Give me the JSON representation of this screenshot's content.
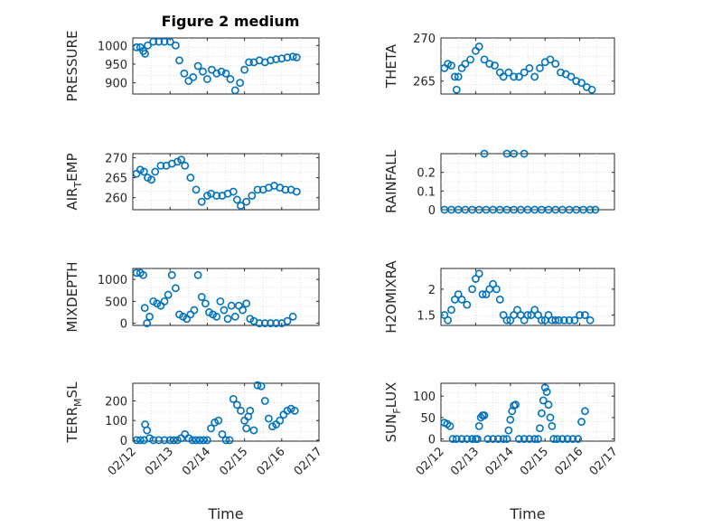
{
  "figure_title": "Figure 2 medium",
  "colors": {
    "marker": "#0072BD",
    "axis": "#262626",
    "grid": "#c8c8c8"
  },
  "chart_data": [
    {
      "id": "pressure",
      "type": "scatter",
      "title": "Figure 2 medium",
      "ylabel": "PRESSURE",
      "ylabel_sub": "",
      "xlabel": "",
      "ylim": [
        870,
        1020
      ],
      "yticks": [
        900,
        950,
        1000
      ],
      "xlim": [
        0,
        5
      ],
      "xticks": [
        0,
        1,
        2,
        3,
        4,
        5
      ],
      "xticklabels": [],
      "grid": true,
      "series": [
        {
          "x": [
            0.1,
            0.2,
            0.28,
            0.33,
            0.4,
            0.55,
            0.7,
            0.85,
            1.0,
            1.15,
            1.25,
            1.38,
            1.5,
            1.62,
            1.75,
            1.88,
            2.0,
            2.12,
            2.25,
            2.38,
            2.5,
            2.62,
            2.75,
            2.88,
            3.0,
            3.12,
            3.25,
            3.4,
            3.55,
            3.7,
            3.85,
            4.0,
            4.15,
            4.3,
            4.4
          ],
          "y": [
            995,
            995,
            985,
            978,
            1000,
            1010,
            1010,
            1010,
            1010,
            1000,
            960,
            925,
            905,
            915,
            945,
            930,
            910,
            935,
            925,
            930,
            925,
            910,
            880,
            900,
            935,
            955,
            955,
            960,
            955,
            960,
            963,
            965,
            968,
            970,
            968
          ]
        }
      ]
    },
    {
      "id": "theta",
      "type": "scatter",
      "title": "",
      "ylabel": "THETA",
      "ylabel_sub": "",
      "xlabel": "",
      "ylim": [
        263.5,
        270
      ],
      "yticks": [
        265,
        270
      ],
      "xlim": [
        0,
        5
      ],
      "xticks": [
        0,
        1,
        2,
        3,
        4,
        5
      ],
      "xticklabels": [],
      "grid": true,
      "series": [
        {
          "x": [
            0.1,
            0.2,
            0.3,
            0.4,
            0.45,
            0.5,
            0.6,
            0.7,
            0.85,
            1.0,
            1.1,
            1.25,
            1.4,
            1.55,
            1.7,
            1.8,
            1.95,
            2.1,
            2.25,
            2.4,
            2.55,
            2.7,
            2.85,
            3.0,
            3.15,
            3.3,
            3.45,
            3.6,
            3.75,
            3.9,
            4.05,
            4.2,
            4.35
          ],
          "y": [
            266.5,
            267,
            266.8,
            265.5,
            264,
            265.5,
            266.5,
            267,
            267.5,
            268.5,
            269,
            267.5,
            267,
            266.8,
            266,
            265.5,
            266,
            265.5,
            265.5,
            266,
            266.5,
            265.5,
            266.5,
            267.2,
            267.5,
            267,
            266,
            265.8,
            265.5,
            265,
            264.8,
            264.3,
            264
          ]
        }
      ]
    },
    {
      "id": "air_temp",
      "type": "scatter",
      "title": "",
      "ylabel": "AIR",
      "ylabel_sub": "T",
      "ylabel_tail": "EMP",
      "xlabel": "",
      "ylim": [
        257,
        271
      ],
      "yticks": [
        260,
        265,
        270
      ],
      "xlim": [
        0,
        5
      ],
      "xticks": [
        0,
        1,
        2,
        3,
        4,
        5
      ],
      "xticklabels": [],
      "grid": true,
      "series": [
        {
          "x": [
            0.1,
            0.2,
            0.3,
            0.4,
            0.5,
            0.6,
            0.75,
            0.9,
            1.05,
            1.2,
            1.3,
            1.4,
            1.55,
            1.7,
            1.85,
            2.0,
            2.1,
            2.25,
            2.4,
            2.55,
            2.7,
            2.8,
            2.9,
            3.05,
            3.2,
            3.35,
            3.5,
            3.65,
            3.8,
            3.95,
            4.1,
            4.25,
            4.4
          ],
          "y": [
            266,
            267,
            266.5,
            265,
            264.5,
            266.5,
            268,
            268,
            268.5,
            269,
            269.5,
            268,
            265,
            262,
            259,
            260.5,
            261,
            260.5,
            260.5,
            261,
            261.5,
            259.5,
            258,
            259,
            260.5,
            262,
            262,
            262.5,
            263,
            262.5,
            262,
            262,
            261.5
          ]
        }
      ]
    },
    {
      "id": "rainfall",
      "type": "scatter",
      "title": "",
      "ylabel": "RAINFALL",
      "ylabel_sub": "",
      "xlabel": "",
      "ylim": [
        0,
        0.3
      ],
      "yticks": [
        0,
        0.1,
        0.2
      ],
      "yticklabels": [
        "0",
        "0.1",
        "0.2"
      ],
      "xlim": [
        0,
        5
      ],
      "xticks": [
        0,
        1,
        2,
        3,
        4,
        5
      ],
      "xticklabels": [],
      "grid": true,
      "series": [
        {
          "x": [
            0.1,
            0.3,
            0.5,
            0.7,
            0.9,
            1.1,
            1.3,
            1.5,
            1.7,
            1.9,
            2.1,
            2.3,
            2.5,
            2.7,
            2.9,
            3.1,
            3.3,
            3.5,
            3.7,
            3.9,
            4.1,
            4.3,
            4.45,
            1.25,
            1.9,
            2.1,
            2.4
          ],
          "y": [
            0,
            0,
            0,
            0,
            0,
            0,
            0,
            0,
            0,
            0,
            0,
            0,
            0,
            0,
            0,
            0,
            0,
            0,
            0,
            0,
            0,
            0,
            0,
            0.3,
            0.3,
            0.3,
            0.3
          ]
        }
      ]
    },
    {
      "id": "mixdepth",
      "type": "scatter",
      "title": "",
      "ylabel": "MIXDEPTH",
      "ylabel_sub": "",
      "xlabel": "",
      "ylim": [
        -50,
        1250
      ],
      "yticks": [
        0,
        500,
        1000
      ],
      "xlim": [
        0,
        5
      ],
      "xticks": [
        0,
        1,
        2,
        3,
        4,
        5
      ],
      "xticklabels": [],
      "grid": true,
      "series": [
        {
          "x": [
            0.1,
            0.2,
            0.28,
            0.32,
            0.38,
            0.45,
            0.55,
            0.65,
            0.75,
            0.85,
            0.95,
            1.05,
            1.15,
            1.25,
            1.35,
            1.45,
            1.55,
            1.65,
            1.75,
            1.85,
            1.95,
            2.05,
            2.15,
            2.25,
            2.35,
            2.45,
            2.55,
            2.65,
            2.75,
            2.85,
            2.95,
            3.05,
            3.15,
            3.25,
            3.4,
            3.55,
            3.7,
            3.85,
            4.0,
            4.15,
            4.3
          ],
          "y": [
            1150,
            1150,
            1100,
            350,
            0,
            150,
            500,
            450,
            400,
            500,
            650,
            1100,
            800,
            200,
            150,
            100,
            200,
            300,
            1100,
            600,
            450,
            250,
            200,
            150,
            500,
            300,
            100,
            400,
            150,
            400,
            300,
            450,
            100,
            50,
            0,
            0,
            0,
            0,
            0,
            50,
            150
          ]
        }
      ]
    },
    {
      "id": "h2omixra",
      "type": "scatter",
      "title": "",
      "ylabel": "H2OMIXRA",
      "ylabel_sub": "",
      "xlabel": "",
      "ylim": [
        1.3,
        2.4
      ],
      "yticks": [
        1.5,
        2
      ],
      "yticklabels": [
        "1.5",
        "2"
      ],
      "xlim": [
        0,
        5
      ],
      "xticks": [
        0,
        1,
        2,
        3,
        4,
        5
      ],
      "xticklabels": [],
      "grid": true,
      "series": [
        {
          "x": [
            0.1,
            0.2,
            0.3,
            0.4,
            0.5,
            0.6,
            0.75,
            0.9,
            1.0,
            1.1,
            1.2,
            1.3,
            1.4,
            1.5,
            1.6,
            1.7,
            1.8,
            1.9,
            2.0,
            2.1,
            2.2,
            2.3,
            2.4,
            2.5,
            2.6,
            2.7,
            2.8,
            2.9,
            3.0,
            3.1,
            3.2,
            3.3,
            3.4,
            3.55,
            3.7,
            3.85,
            4.0,
            4.15,
            4.3
          ],
          "y": [
            1.5,
            1.4,
            1.6,
            1.8,
            1.9,
            1.8,
            1.7,
            2.0,
            2.2,
            2.3,
            1.9,
            1.9,
            2.0,
            2.1,
            2.0,
            1.8,
            1.5,
            1.4,
            1.4,
            1.5,
            1.6,
            1.5,
            1.4,
            1.5,
            1.5,
            1.6,
            1.5,
            1.4,
            1.4,
            1.5,
            1.4,
            1.4,
            1.4,
            1.4,
            1.4,
            1.4,
            1.5,
            1.5,
            1.4
          ]
        }
      ]
    },
    {
      "id": "terr_msl",
      "type": "scatter",
      "title": "",
      "ylabel": "TERR",
      "ylabel_sub": "M",
      "ylabel_tail": "SL",
      "xlabel": "Time",
      "ylim": [
        -5,
        290
      ],
      "yticks": [
        0,
        100,
        200
      ],
      "xlim": [
        0,
        5
      ],
      "xticks": [
        0,
        1,
        2,
        3,
        4,
        5
      ],
      "xticklabels": [
        "02/12",
        "02/13",
        "02/14",
        "02/15",
        "02/16",
        "02/17"
      ],
      "grid": true,
      "series": [
        {
          "x": [
            0.1,
            0.2,
            0.3,
            0.33,
            0.38,
            0.45,
            0.55,
            0.7,
            0.85,
            1.0,
            1.1,
            1.2,
            1.3,
            1.4,
            1.5,
            1.6,
            1.7,
            1.8,
            1.9,
            2.0,
            2.1,
            2.2,
            2.3,
            2.4,
            2.5,
            2.6,
            2.7,
            2.8,
            2.9,
            3.0,
            3.05,
            3.1,
            3.15,
            3.25,
            3.35,
            3.45,
            3.55,
            3.65,
            3.75,
            3.85,
            3.95,
            4.05,
            4.15,
            4.25,
            4.35
          ],
          "y": [
            0,
            0,
            0,
            80,
            50,
            10,
            0,
            0,
            0,
            0,
            0,
            0,
            10,
            30,
            10,
            0,
            0,
            0,
            0,
            0,
            60,
            90,
            100,
            30,
            0,
            0,
            210,
            180,
            150,
            100,
            60,
            120,
            150,
            50,
            280,
            275,
            200,
            110,
            70,
            80,
            100,
            130,
            150,
            160,
            150
          ]
        }
      ]
    },
    {
      "id": "sun_flux",
      "type": "scatter",
      "title": "",
      "ylabel": "SUN",
      "ylabel_sub": "F",
      "ylabel_tail": "LUX",
      "xlabel": "Time",
      "ylim": [
        -5,
        130
      ],
      "yticks": [
        0,
        50,
        100
      ],
      "xlim": [
        0,
        5
      ],
      "xticks": [
        0,
        1,
        2,
        3,
        4,
        5
      ],
      "xticklabels": [
        "02/12",
        "02/13",
        "02/14",
        "02/15",
        "02/16",
        "02/17"
      ],
      "grid": true,
      "series": [
        {
          "x": [
            0.1,
            0.18,
            0.26,
            0.34,
            0.45,
            0.6,
            0.75,
            0.9,
            1.0,
            1.05,
            1.1,
            1.15,
            1.2,
            1.25,
            1.35,
            1.5,
            1.65,
            1.8,
            1.9,
            1.95,
            2.0,
            2.05,
            2.1,
            2.15,
            2.25,
            2.4,
            2.55,
            2.7,
            2.8,
            2.85,
            2.9,
            2.95,
            3.0,
            3.05,
            3.1,
            3.15,
            3.2,
            3.25,
            3.35,
            3.5,
            3.65,
            3.8,
            3.95,
            4.05,
            4.15
          ],
          "y": [
            38,
            35,
            30,
            0,
            0,
            0,
            0,
            0,
            0,
            0,
            30,
            50,
            55,
            55,
            0,
            0,
            0,
            0,
            0,
            20,
            45,
            65,
            78,
            80,
            0,
            0,
            0,
            0,
            0,
            25,
            60,
            90,
            120,
            110,
            80,
            50,
            30,
            0,
            0,
            0,
            0,
            0,
            0,
            40,
            65
          ]
        }
      ]
    }
  ]
}
